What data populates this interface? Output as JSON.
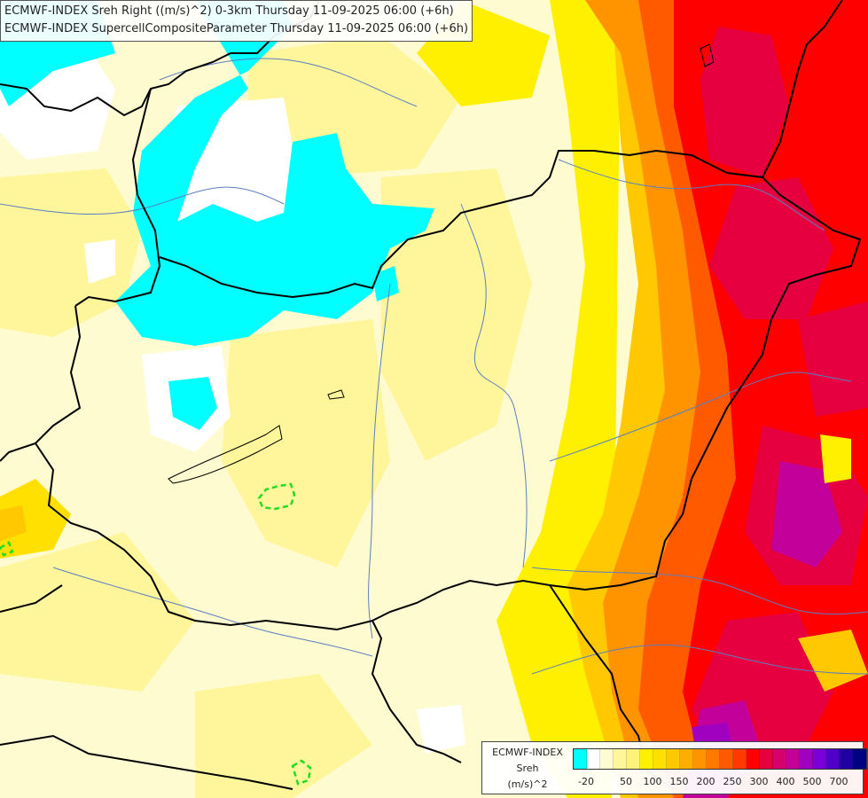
{
  "header": {
    "line1": "ECMWF-INDEX Sreh Right ((m/s)^2) 0-3km Thursday 11-09-2025 06:00 (+6h)",
    "line2": "ECMWF-INDEX SupercellCompositeParameter Thursday 11-09-2025 06:00 (+6h)"
  },
  "legend": {
    "title1": "ECMWF-INDEX",
    "title2": "Sreh",
    "unit": "(m/s)^2",
    "colors": [
      "#00ffff",
      "#ffffff",
      "#fffbd0",
      "#fff59a",
      "#fff27a",
      "#fff000",
      "#ffe000",
      "#ffc800",
      "#ffae00",
      "#ff9400",
      "#ff7800",
      "#ff5a00",
      "#ff3a00",
      "#ff0000",
      "#e60040",
      "#d6006e",
      "#c4009a",
      "#a000c0",
      "#7a00d8",
      "#5000c8",
      "#2000a0",
      "#000080"
    ],
    "ticks": [
      "-20",
      "50",
      "100",
      "150",
      "200",
      "250",
      "300",
      "400",
      "500",
      "700"
    ]
  },
  "map": {
    "colors": {
      "cyan": "#00ffff",
      "white": "#ffffff",
      "pale": "#fffbd0",
      "light_yellow": "#fff59a",
      "yellow": "#fff000",
      "gold": "#ffc800",
      "orange": "#ff9400",
      "dark_orange": "#ff5a00",
      "red": "#ff0000",
      "crimson": "#e60040",
      "magenta": "#c4009a",
      "purple": "#a000c0",
      "border": "#000000",
      "river": "#5a7fc0",
      "scp_contour": "#22dd22"
    }
  }
}
